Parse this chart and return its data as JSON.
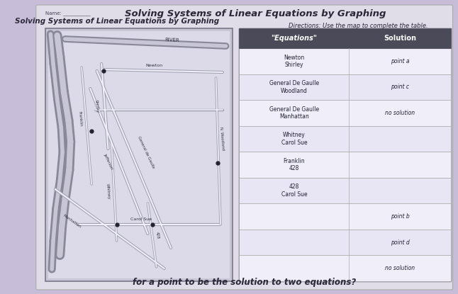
{
  "title_main": "Solving Systems of Linear Equations by Graphing",
  "title_sub": "Solving Systems",
  "name_label": "Name: ___",
  "directions": "Directions: Use the map to complete the table.",
  "table_header": [
    "\"Equations\"",
    "Solution"
  ],
  "table_rows": [
    [
      "Newton\nShirley",
      "point a"
    ],
    [
      "General De Gaulle\nWoodland",
      "point c"
    ],
    [
      "General De Gaulle\nManhattan",
      "no solution"
    ],
    [
      "Whitney\nCarol Sue",
      ""
    ],
    [
      "Franklin\n428",
      ""
    ],
    [
      "428\nCarol Sue",
      ""
    ],
    [
      "",
      "point b"
    ],
    [
      "",
      "point d"
    ],
    [
      "",
      "no solution"
    ]
  ],
  "bg_outer": "#c8bdd8",
  "bg_page": "#e0dce8",
  "map_bg": "#c8c5d5",
  "map_inner_bg": "#dcdae8",
  "map_street_dark": "#a0a0b0",
  "map_street_light": "#f0eef8",
  "map_highway_dark": "#888898",
  "map_highway_light": "#c8c5d5",
  "table_header_bg": "#4a4a58",
  "table_header_fg": "#ffffff",
  "table_row_bg1": "#f0eef8",
  "table_row_bg2": "#e8e5f5",
  "table_border": "#888888",
  "text_dark": "#2a2838",
  "bottom_text": "for a point to be the solution to two equations?"
}
